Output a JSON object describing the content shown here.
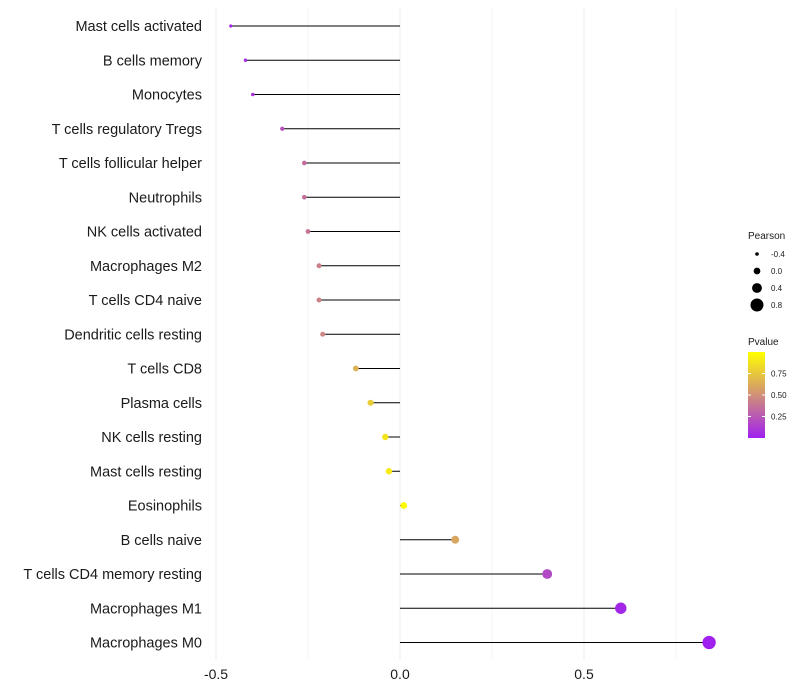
{
  "chart_data": {
    "type": "lollipop",
    "title": "",
    "xlabel": "",
    "ylabel": "",
    "xlim": [
      -0.5,
      0.85
    ],
    "xticks": [
      -0.5,
      0.0,
      0.5
    ],
    "xtick_labels": [
      "-0.5",
      "0.0",
      "0.5"
    ],
    "grid": true,
    "points": [
      {
        "label": "Mast cells activated",
        "pearson": -0.46,
        "pvalue": 0.02
      },
      {
        "label": "B cells memory",
        "pearson": -0.42,
        "pvalue": 0.06
      },
      {
        "label": "Monocytes",
        "pearson": -0.4,
        "pvalue": 0.09
      },
      {
        "label": "T cells regulatory  Tregs",
        "pearson": -0.32,
        "pvalue": 0.22
      },
      {
        "label": "T cells follicular helper",
        "pearson": -0.26,
        "pvalue": 0.35
      },
      {
        "label": "Neutrophils",
        "pearson": -0.26,
        "pvalue": 0.36
      },
      {
        "label": "NK cells activated",
        "pearson": -0.25,
        "pvalue": 0.38
      },
      {
        "label": "Macrophages M2",
        "pearson": -0.22,
        "pvalue": 0.43
      },
      {
        "label": "T cells CD4 naive",
        "pearson": -0.22,
        "pvalue": 0.44
      },
      {
        "label": "Dendritic cells resting",
        "pearson": -0.21,
        "pvalue": 0.46
      },
      {
        "label": "T cells CD8",
        "pearson": -0.12,
        "pvalue": 0.65
      },
      {
        "label": "Plasma cells",
        "pearson": -0.08,
        "pvalue": 0.77
      },
      {
        "label": "NK cells resting",
        "pearson": -0.04,
        "pvalue": 0.88
      },
      {
        "label": "Mast cells resting",
        "pearson": -0.03,
        "pvalue": 0.91
      },
      {
        "label": "Eosinophils",
        "pearson": 0.01,
        "pvalue": 0.98
      },
      {
        "label": "B cells naive",
        "pearson": 0.15,
        "pvalue": 0.6
      },
      {
        "label": "T cells CD4 memory resting",
        "pearson": 0.4,
        "pvalue": 0.18
      },
      {
        "label": "Macrophages M1",
        "pearson": 0.6,
        "pvalue": 0.03
      },
      {
        "label": "Macrophages M0",
        "pearson": 0.84,
        "pvalue": 0.004
      }
    ],
    "legend": {
      "size_title": "Pearson",
      "size_breaks": [
        -0.4,
        0.0,
        0.4,
        0.8
      ],
      "size_labels": [
        "-0.4",
        "0.0",
        "0.4",
        "0.8"
      ],
      "color_title": "Pvalue",
      "color_breaks": [
        0.75,
        0.5,
        0.25
      ],
      "color_labels": [
        "0.75",
        "0.50",
        "0.25"
      ],
      "color_range": [
        0.0,
        1.0
      ],
      "color_low": "#a020f0",
      "color_high": "#ffff00"
    }
  }
}
